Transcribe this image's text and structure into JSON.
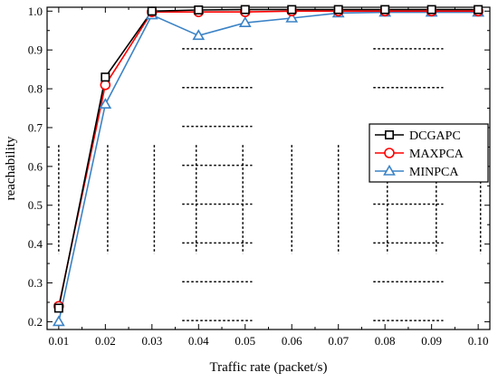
{
  "chart_data": {
    "type": "line",
    "xlabel": "Traffic rate (packet/s)",
    "ylabel": "reachability",
    "x": [
      0.01,
      0.02,
      0.03,
      0.04,
      0.05,
      0.06,
      0.07,
      0.08,
      0.09,
      0.1
    ],
    "x_tick_labels": [
      "0.01",
      "0.02",
      "0.03",
      "0.04",
      "0.05",
      "0.06",
      "0.07",
      "0.08",
      "0.09",
      "0.10"
    ],
    "y_tick_labels": [
      "0.2",
      "0.3",
      "0.4",
      "0.5",
      "0.6",
      "0.7",
      "0.8",
      "0.9",
      "1.0"
    ],
    "xlim": [
      0.0075,
      0.1025
    ],
    "ylim": [
      0.18,
      1.01
    ],
    "legend_position": "right",
    "series": [
      {
        "name": "DCGAPC",
        "color": "#000000",
        "marker": "square",
        "values": [
          0.235,
          0.83,
          1.0,
          1.003,
          1.004,
          1.004,
          1.004,
          1.004,
          1.004,
          1.004
        ]
      },
      {
        "name": "MAXPCA",
        "color": "#ff0000",
        "marker": "circle",
        "values": [
          0.24,
          0.81,
          0.998,
          0.998,
          0.998,
          1.0,
          1.0,
          1.0,
          1.0,
          1.0
        ]
      },
      {
        "name": "MINPCA",
        "color": "#3b83c6",
        "marker": "triangle",
        "values": [
          0.2,
          0.76,
          0.99,
          0.937,
          0.97,
          0.982,
          0.995,
          0.997,
          0.997,
          0.997
        ]
      }
    ]
  }
}
